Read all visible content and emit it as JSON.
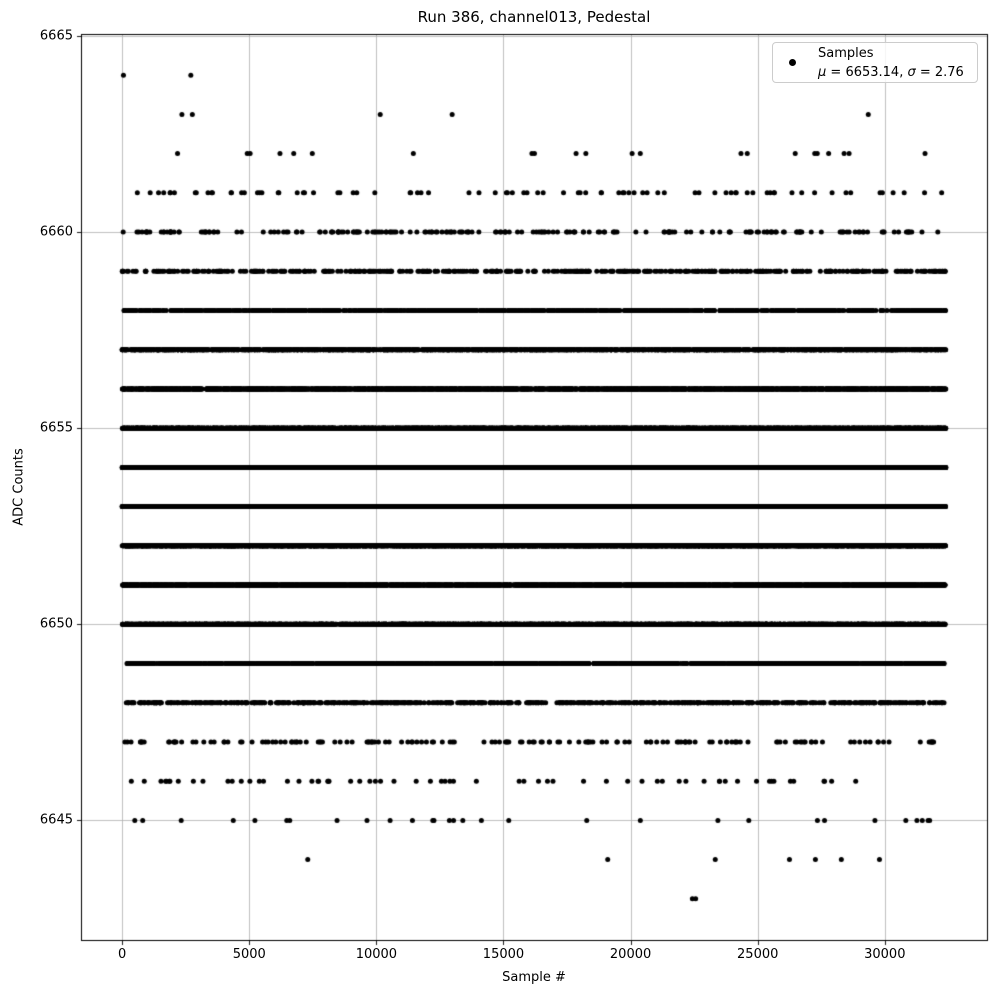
{
  "figure": {
    "title": "Run 386, channel013, Pedestal",
    "xlabel": "Sample #",
    "ylabel": "ADC Counts"
  },
  "legend": {
    "samples_label": "Samples",
    "mu_symbol": "μ",
    "mu_text": " = 6653.14, ",
    "sigma_symbol": "σ",
    "sigma_text": " = 2.76"
  },
  "chart_data": {
    "type": "scatter",
    "title": "Run 386, channel013, Pedestal",
    "xlabel": "Sample #",
    "ylabel": "ADC Counts",
    "mean": 6653.14,
    "sigma": 2.76,
    "legend_label": "Samples",
    "legend_stats": "μ = 6653.14, σ = 2.76",
    "legend_position": "upper right",
    "grid": true,
    "xlim": [
      -1620,
      34020
    ],
    "ylim": [
      6641.95,
      6665.05
    ],
    "x_range": [
      0,
      32400
    ],
    "xticks": [
      0,
      5000,
      10000,
      15000,
      20000,
      25000,
      30000
    ],
    "yticks": [
      6645,
      6650,
      6655,
      6660,
      6665
    ],
    "marker_color": "#000000",
    "grid_color": "#b0b0b0",
    "spine_color": "#000000",
    "value_bands": [
      {
        "adc": 6645,
        "count": 30
      },
      {
        "adc": 6646,
        "count": 65
      },
      {
        "adc": 6647,
        "count": 160
      },
      {
        "adc": 6648,
        "count": 700
      },
      {
        "adc": 6649,
        "count": 1400
      },
      {
        "adc": 6650,
        "count": 2400
      },
      {
        "adc": 6651,
        "count": 3400
      },
      {
        "adc": 6652,
        "count": 4200
      },
      {
        "adc": 6653,
        "count": 4650
      },
      {
        "adc": 6654,
        "count": 4450
      },
      {
        "adc": 6655,
        "count": 3700
      },
      {
        "adc": 6656,
        "count": 2750
      },
      {
        "adc": 6657,
        "count": 1800
      },
      {
        "adc": 6658,
        "count": 1000
      },
      {
        "adc": 6659,
        "count": 450
      },
      {
        "adc": 6660,
        "count": 210
      },
      {
        "adc": 6661,
        "count": 85
      },
      {
        "adc": 6662,
        "count": 22
      }
    ],
    "outlier_points": [
      {
        "x": 50,
        "y": 6664
      },
      {
        "x": 2700,
        "y": 6664
      },
      {
        "x": 2350,
        "y": 6663
      },
      {
        "x": 2760,
        "y": 6663
      },
      {
        "x": 10150,
        "y": 6663
      },
      {
        "x": 12980,
        "y": 6663
      },
      {
        "x": 29350,
        "y": 6663
      },
      {
        "x": 7300,
        "y": 6644
      },
      {
        "x": 19100,
        "y": 6644
      },
      {
        "x": 23330,
        "y": 6644
      },
      {
        "x": 26250,
        "y": 6644
      },
      {
        "x": 27270,
        "y": 6644
      },
      {
        "x": 28290,
        "y": 6644
      },
      {
        "x": 29790,
        "y": 6644
      },
      {
        "x": 22430,
        "y": 6643
      },
      {
        "x": 22560,
        "y": 6643
      }
    ]
  }
}
